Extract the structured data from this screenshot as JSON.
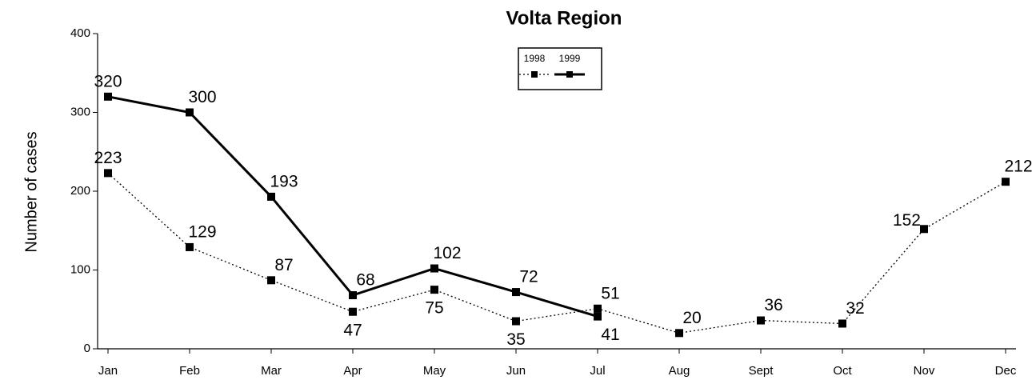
{
  "chart_data": {
    "type": "line",
    "title": "Volta Region",
    "y_label": "Number of cases",
    "categories": [
      "Jan",
      "Feb",
      "Mar",
      "Apr",
      "May",
      "Jun",
      "Jul",
      "Aug",
      "Sept",
      "Oct",
      "Nov",
      "Dec"
    ],
    "series": [
      {
        "name": "1998",
        "color": "#000000",
        "dash": "dotted",
        "values": [
          223,
          129,
          87,
          47,
          75,
          35,
          51,
          20,
          36,
          32,
          152,
          212
        ]
      },
      {
        "name": "1999",
        "color": "#000000",
        "dash": "solid",
        "values": [
          320,
          300,
          193,
          68,
          102,
          72,
          41,
          null,
          null,
          null,
          null,
          null
        ]
      }
    ],
    "ylim": [
      0,
      400
    ],
    "yticks": [
      0,
      100,
      200,
      300,
      400
    ],
    "grid": false,
    "legend": "top"
  }
}
